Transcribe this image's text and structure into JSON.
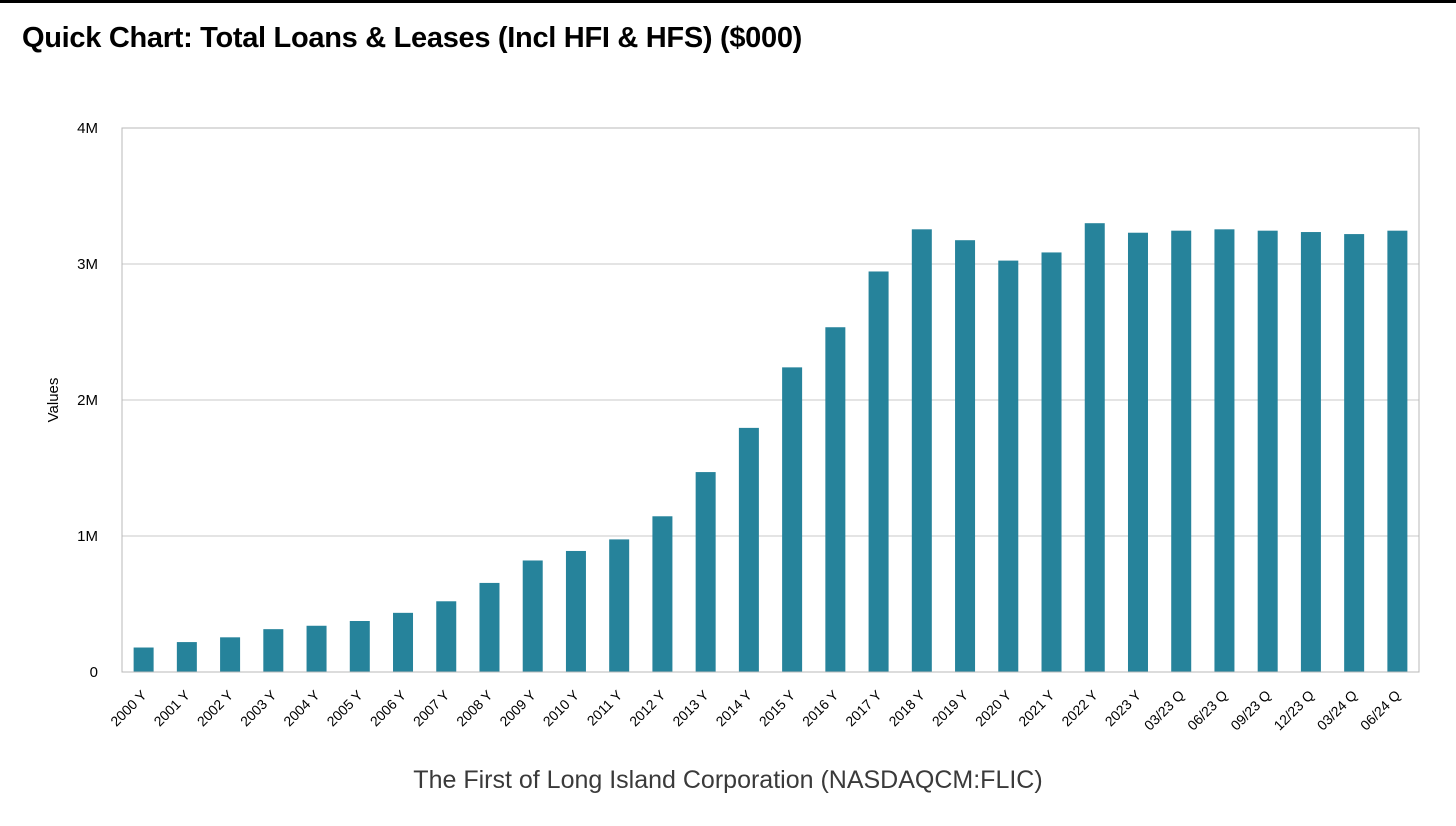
{
  "title": "Quick Chart: Total Loans & Leases (Incl HFI & HFS) ($000)",
  "caption": "The First of Long Island Corporation (NASDAQCM:FLIC)",
  "chart_data": {
    "type": "bar",
    "title": "Quick Chart: Total Loans & Leases (Incl HFI & HFS) ($000)",
    "xlabel": "",
    "ylabel": "Values",
    "ylim": [
      0,
      4000000
    ],
    "yticks": [
      0,
      1000000,
      2000000,
      3000000,
      4000000
    ],
    "ytick_labels": [
      "0",
      "1M",
      "2M",
      "3M",
      "4M"
    ],
    "grid": true,
    "legend": "none",
    "bar_color": "#26839B",
    "categories": [
      "2000 Y",
      "2001 Y",
      "2002 Y",
      "2003 Y",
      "2004 Y",
      "2005 Y",
      "2006 Y",
      "2007 Y",
      "2008 Y",
      "2009 Y",
      "2010 Y",
      "2011 Y",
      "2012 Y",
      "2013 Y",
      "2014 Y",
      "2015 Y",
      "2016 Y",
      "2017 Y",
      "2018 Y",
      "2019 Y",
      "2020 Y",
      "2021 Y",
      "2022 Y",
      "2023 Y",
      "03/23 Q",
      "06/23 Q",
      "09/23 Q",
      "12/23 Q",
      "03/24 Q",
      "06/24 Q"
    ],
    "values": [
      180000,
      220000,
      255000,
      315000,
      340000,
      375000,
      435000,
      520000,
      655000,
      820000,
      890000,
      975000,
      1145000,
      1470000,
      1795000,
      2240000,
      2535000,
      2945000,
      3255000,
      3175000,
      3025000,
      3085000,
      3300000,
      3230000,
      3245000,
      3255000,
      3245000,
      3235000,
      3220000,
      3245000
    ]
  }
}
